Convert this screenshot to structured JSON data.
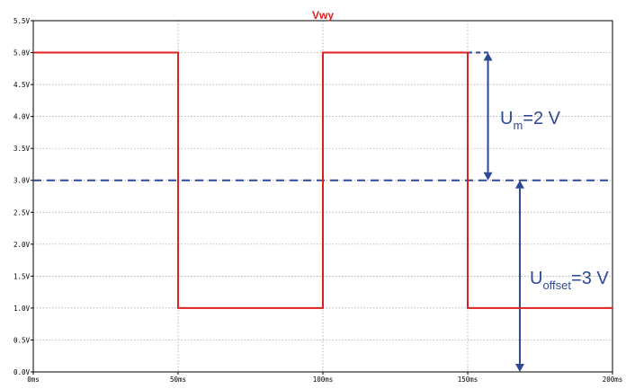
{
  "chart_data": {
    "type": "line",
    "title": "Vwy",
    "xlabel": "",
    "ylabel": "",
    "x_unit": "ms",
    "y_unit": "V",
    "xlim": [
      0,
      200
    ],
    "ylim": [
      0,
      5.5
    ],
    "grid": true,
    "x_ticks": [
      "0ms",
      "50ms",
      "100ms",
      "150ms",
      "200ms"
    ],
    "y_ticks": [
      "0.0V",
      "0.5V",
      "1.0V",
      "1.5V",
      "2.0V",
      "2.5V",
      "3.0V",
      "3.5V",
      "4.0V",
      "4.5V",
      "5.0V",
      "5.5V"
    ],
    "series": [
      {
        "x": [
          0,
          50,
          50,
          100,
          100,
          150,
          150,
          200
        ],
        "y": [
          5,
          5,
          1,
          1,
          5,
          5,
          1,
          1
        ]
      }
    ],
    "annotations": {
      "offset_line": {
        "y": 3.0
      },
      "peak_line": {
        "y": 5.0,
        "x_start": 150,
        "x_end": 157
      },
      "um_arrow": {
        "x": 157,
        "y_from": 5.0,
        "y_to": 3.0
      },
      "offset_arrow": {
        "x": 168,
        "y_from": 3.0,
        "y_to": 0.0
      },
      "um_label": {
        "main": "U",
        "sub": "m",
        "rest": "=2 V"
      },
      "offset_label": {
        "main": "U",
        "sub": "offset",
        "rest": "=3 V"
      }
    },
    "colors": {
      "signal": "#e02020",
      "annotation": "#2e4896",
      "grid": "#9a9a9a",
      "axes": "#000000",
      "tick": "#000000"
    }
  }
}
